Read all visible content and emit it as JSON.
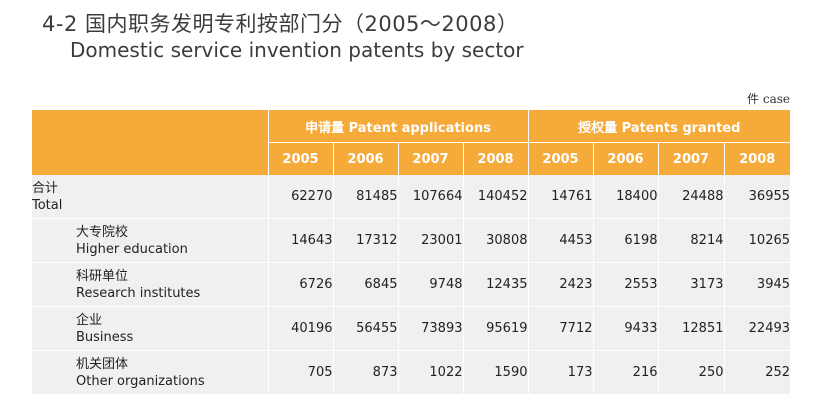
{
  "title_zh": "4-2 国内职务发明专利按部门分（2005～2008）",
  "title_en": "Domestic service invention patents by sector",
  "unit": "件 case",
  "groups": [
    {
      "label": "申请量 Patent applications"
    },
    {
      "label": "授权量 Patents granted"
    }
  ],
  "years": [
    "2005",
    "2006",
    "2007",
    "2008",
    "2005",
    "2006",
    "2007",
    "2008"
  ],
  "rows": [
    {
      "zh": "合计",
      "en": "Total",
      "values": [
        "62270",
        "81485",
        "107664",
        "140452",
        "14761",
        "18400",
        "24488",
        "36955"
      ]
    },
    {
      "zh": "大专院校",
      "en": "Higher education",
      "values": [
        "14643",
        "17312",
        "23001",
        "30808",
        "4453",
        "6198",
        "8214",
        "10265"
      ]
    },
    {
      "zh": "科研单位",
      "en": "Research institutes",
      "values": [
        "6726",
        "6845",
        "9748",
        "12435",
        "2423",
        "2553",
        "3173",
        "3945"
      ]
    },
    {
      "zh": "企业",
      "en": "Business",
      "values": [
        "40196",
        "56455",
        "73893",
        "95619",
        "7712",
        "9433",
        "12851",
        "22493"
      ]
    },
    {
      "zh": "机关团体",
      "en": "Other organizations",
      "values": [
        "705",
        "873",
        "1022",
        "1590",
        "173",
        "216",
        "250",
        "252"
      ]
    }
  ]
}
